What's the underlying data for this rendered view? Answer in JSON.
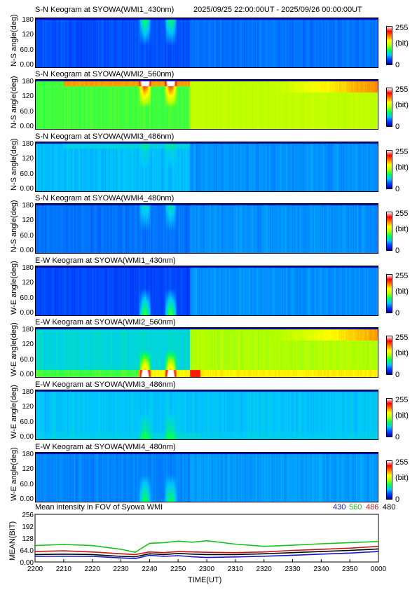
{
  "header": {
    "title": "S-N Keogram at SYOWA(WMI1_430nm)",
    "time_range": "2025/09/25 22:00:00UT - 2025/09/26 00:00:00UT"
  },
  "colorbar": {
    "max_label": "255",
    "unit_label": "(bit)",
    "min_label": "0"
  },
  "keogram_colors": [
    "#0000a0",
    "#0040ff",
    "#00c8ff",
    "#00ff60",
    "#b4ff00",
    "#ffff00",
    "#ff8000",
    "#ff0000",
    "#ffffff"
  ],
  "panels": [
    {
      "title": "S-N Keogram at SYOWA(WMI1_430nm)",
      "ylabel": "N-S angle(deg)",
      "yticks": [
        "180",
        "120",
        "60.0",
        "0.00"
      ],
      "base": 0.14,
      "after": 0.17,
      "band": 0.25,
      "edge": 0.0,
      "late": 0.0
    },
    {
      "title": "S-N Keogram at SYOWA(WMI2_560nm)",
      "ylabel": "N-S angle(deg)",
      "yticks": [
        "180",
        "120",
        "60.0",
        "0.00"
      ],
      "base": 0.42,
      "after": 0.52,
      "band": 0.5,
      "edge": 0.3,
      "late": 0.25
    },
    {
      "title": "S-N Keogram at SYOWA(WMI3_486nm)",
      "ylabel": "N-S angle(deg)",
      "yticks": [
        "180",
        "120",
        "60.0",
        "0.00"
      ],
      "base": 0.24,
      "after": 0.2,
      "band": 0.06,
      "edge": 0.03,
      "late": 0.0
    },
    {
      "title": "S-N Keogram at SYOWA(WMI4_480nm)",
      "ylabel": "N-S angle(deg)",
      "yticks": [
        "180",
        "120",
        "60.0",
        "0.00"
      ],
      "base": 0.17,
      "after": 0.2,
      "band": 0.14,
      "edge": 0.0,
      "late": 0.0
    },
    {
      "title": "E-W Keogram at SYOWA(WMI1_430nm)",
      "ylabel": "W-E angle(deg)",
      "yticks": [
        "180",
        "120",
        "60.0",
        "0.00"
      ],
      "base": 0.13,
      "after": 0.2,
      "band": 0.3,
      "edge": 0.0,
      "late": 0.0
    },
    {
      "title": "E-W Keogram at SYOWA(WMI2_560nm)",
      "ylabel": "W-E angle(deg)",
      "yticks": [
        "180",
        "120",
        "60.0",
        "0.00"
      ],
      "base": 0.28,
      "after": 0.5,
      "band": 0.55,
      "edge": 0.35,
      "late": 0.25
    },
    {
      "title": "E-W Keogram at SYOWA(WMI3_486nm)",
      "ylabel": "W-E angle(deg)",
      "yticks": [
        "180",
        "120",
        "60.0",
        "0.00"
      ],
      "base": 0.25,
      "after": 0.25,
      "band": 0.12,
      "edge": 0.03,
      "late": 0.0
    },
    {
      "title": "E-W Keogram at SYOWA(WMI4_480nm)",
      "ylabel": "W-E angle(deg)",
      "yticks": [
        "180",
        "120",
        "60.0",
        "0.00"
      ],
      "base": 0.19,
      "after": 0.21,
      "band": 0.2,
      "edge": 0.0,
      "late": 0.0
    }
  ],
  "chart_data": {
    "type": "line",
    "title": "Mean intensity in FOV of Syowa WMI",
    "xlabel": "TIME(UT)",
    "ylabel": "MEAN(BIT)",
    "x_ticks": [
      "2200",
      "2210",
      "2220",
      "2230",
      "2240",
      "2250",
      "2300",
      "2310",
      "2320",
      "2330",
      "2340",
      "2350",
      "0000"
    ],
    "y_ticks": [
      "256",
      "192",
      "128",
      "64.0",
      "0.00"
    ],
    "ylim": [
      0,
      256
    ],
    "x": [
      0,
      10,
      20,
      30,
      35,
      40,
      45,
      50,
      55,
      60,
      70,
      80,
      90,
      100,
      110,
      120
    ],
    "series": [
      {
        "name": "430",
        "color": "#1818c0",
        "values": [
          30,
          31,
          30,
          22,
          18,
          36,
          30,
          34,
          28,
          24,
          27,
          31,
          36,
          42,
          48,
          56
        ]
      },
      {
        "name": "560",
        "color": "#18c018",
        "values": [
          88,
          94,
          88,
          68,
          52,
          100,
          104,
          112,
          106,
          114,
          96,
          84,
          90,
          98,
          104,
          110
        ]
      },
      {
        "name": "486",
        "color": "#c01818",
        "values": [
          56,
          60,
          54,
          44,
          40,
          54,
          50,
          56,
          54,
          52,
          50,
          54,
          62,
          68,
          74,
          84
        ]
      },
      {
        "name": "480",
        "color": "#000000",
        "values": [
          40,
          42,
          40,
          30,
          28,
          44,
          40,
          46,
          42,
          40,
          40,
          44,
          50,
          56,
          62,
          70
        ]
      }
    ]
  }
}
